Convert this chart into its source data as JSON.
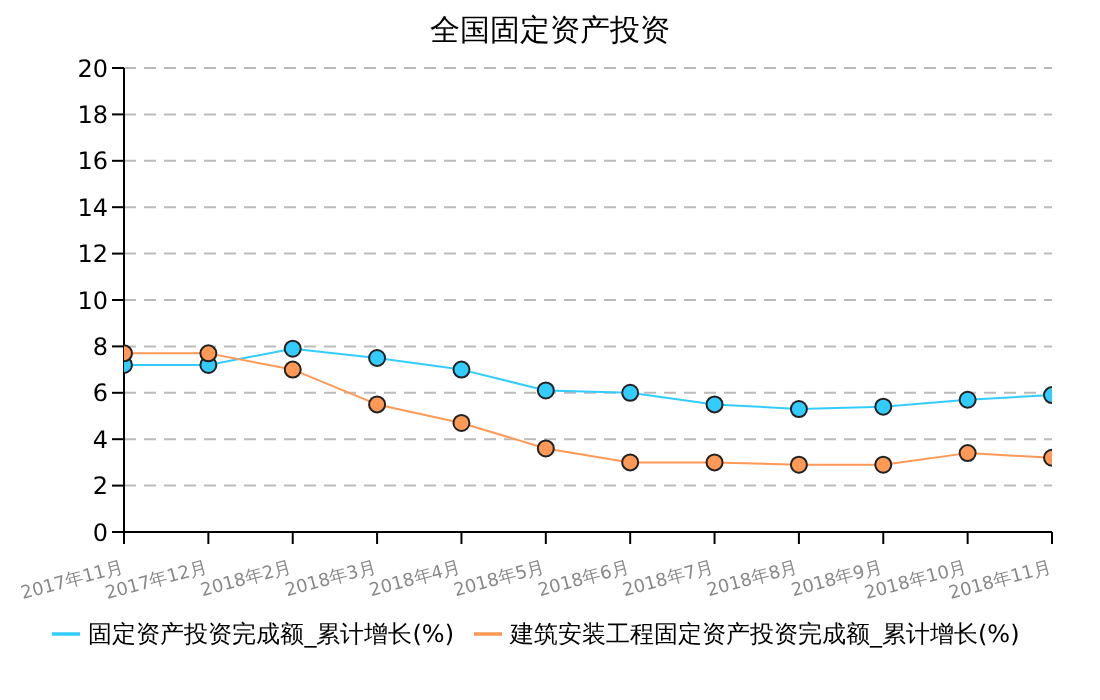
{
  "chart_data": {
    "type": "line",
    "title": "全国固定资产投资",
    "categories": [
      "2017年11月",
      "2017年12月",
      "2018年2月",
      "2018年3月",
      "2018年4月",
      "2018年5月",
      "2018年6月",
      "2018年7月",
      "2018年8月",
      "2018年9月",
      "2018年10月",
      "2018年11月"
    ],
    "series": [
      {
        "name": "固定资产投资完成额_累计增长(%)",
        "color": "#33ccff",
        "values": [
          7.2,
          7.2,
          7.9,
          7.5,
          7.0,
          6.1,
          6.0,
          5.5,
          5.3,
          5.4,
          5.7,
          5.9
        ]
      },
      {
        "name": "建筑安装工程固定资产投资完成额_累计增长(%)",
        "color": "#ff9955",
        "values": [
          7.7,
          7.7,
          7.0,
          5.5,
          4.7,
          3.6,
          3.0,
          3.0,
          2.9,
          2.9,
          3.4,
          3.2
        ]
      }
    ],
    "ylim": [
      0,
      20
    ],
    "yticks": [
      0,
      2,
      4,
      6,
      8,
      10,
      12,
      14,
      16,
      18,
      20
    ],
    "grid": "y",
    "legend": "bottom",
    "marker": "circle",
    "line_style": "solid"
  }
}
